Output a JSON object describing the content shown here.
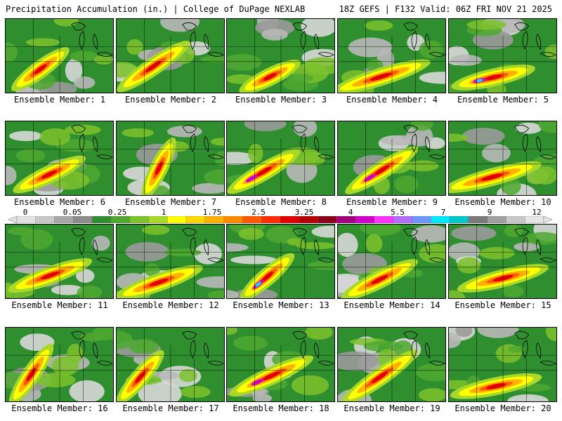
{
  "header": {
    "title": "Precipitation Accumulation (in.) | College of DuPage NEXLAB",
    "run_info": "18Z GEFS | F132 Valid: 06Z FRI NOV 21 2025"
  },
  "colorbar": {
    "ticks": [
      "0",
      "0.05",
      "0.25",
      "1",
      "1.75",
      "2.5",
      "3.25",
      "4",
      "5.5",
      "7",
      "9",
      "12"
    ],
    "colors": [
      "#e2e2e2",
      "#c8c8c8",
      "#a8a8a8",
      "#8c8c8c",
      "#2f8f2f",
      "#4fa830",
      "#7cc22c",
      "#a8d82a",
      "#ffff00",
      "#ffd800",
      "#ffb000",
      "#ff8a00",
      "#ff5a00",
      "#ff2a00",
      "#e00000",
      "#b40000",
      "#8c0018",
      "#a0007a",
      "#d000c8",
      "#ff33ff",
      "#b46eff",
      "#6e96ff",
      "#00e8ff",
      "#00c8c8",
      "#7a7a7a",
      "#a0a0a0",
      "#c8c8c8",
      "#e6e6e6"
    ]
  },
  "members": [
    {
      "label": "Ensemble Member: 1"
    },
    {
      "label": "Ensemble Member: 2"
    },
    {
      "label": "Ensemble Member: 3"
    },
    {
      "label": "Ensemble Member: 4"
    },
    {
      "label": "Ensemble Member: 5"
    },
    {
      "label": "Ensemble Member: 6"
    },
    {
      "label": "Ensemble Member: 7"
    },
    {
      "label": "Ensemble Member: 8"
    },
    {
      "label": "Ensemble Member: 9"
    },
    {
      "label": "Ensemble Member: 10"
    },
    {
      "label": "Ensemble Member: 11"
    },
    {
      "label": "Ensemble Member: 12"
    },
    {
      "label": "Ensemble Member: 13"
    },
    {
      "label": "Ensemble Member: 14"
    },
    {
      "label": "Ensemble Member: 15"
    },
    {
      "label": "Ensemble Member: 16"
    },
    {
      "label": "Ensemble Member: 17"
    },
    {
      "label": "Ensemble Member: 18"
    },
    {
      "label": "Ensemble Member: 19"
    },
    {
      "label": "Ensemble Member: 20"
    }
  ]
}
